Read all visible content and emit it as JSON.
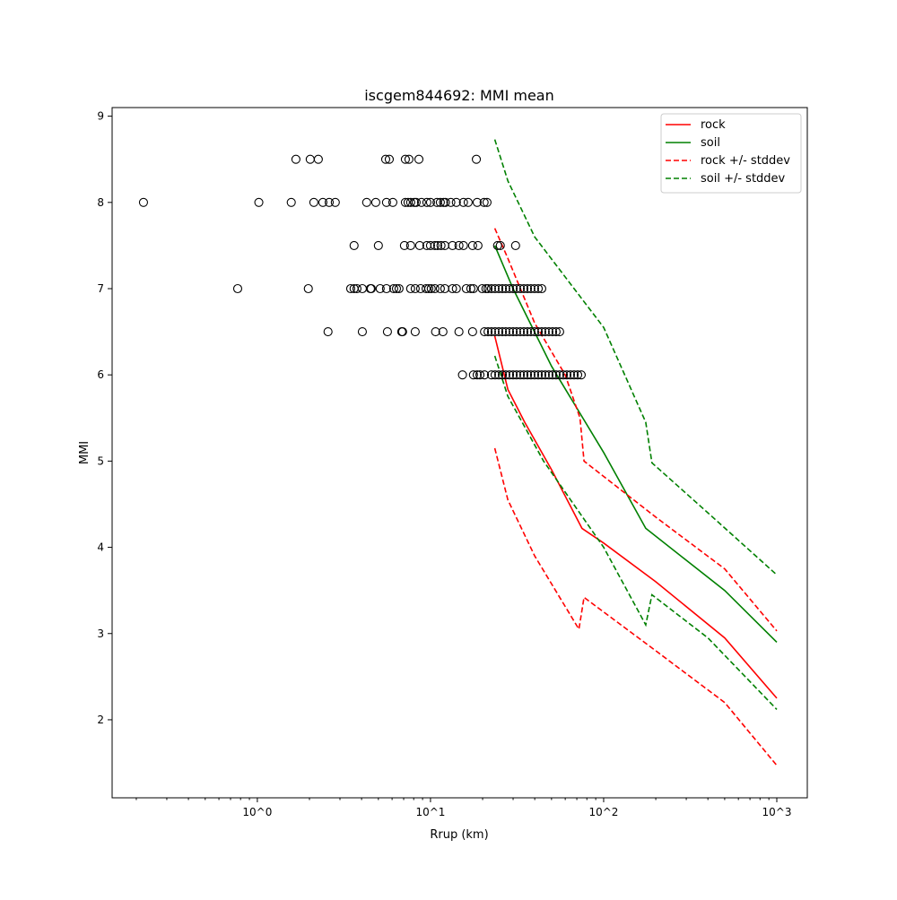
{
  "chart_data": {
    "type": "scatter",
    "title": "iscgem844692: MMI mean",
    "xlabel": "Rrup (km)",
    "ylabel": "MMI",
    "xscale": "log",
    "xlim": [
      0.145,
      1500
    ],
    "ylim": [
      1.095,
      9.1
    ],
    "x_ticks": [
      {
        "value": 1,
        "label": "10^0"
      },
      {
        "value": 10,
        "label": "10^1"
      },
      {
        "value": 100,
        "label": "10^2"
      },
      {
        "value": 1000,
        "label": "10^3"
      }
    ],
    "y_ticks": [
      2,
      3,
      4,
      5,
      6,
      7,
      8,
      9
    ],
    "grid": false,
    "legend_position": "top-right",
    "observations": {
      "name": "observed",
      "marker": "open-circle",
      "rows": [
        {
          "y": 8.5,
          "x": [
            1.67,
            2.02,
            2.25,
            5.51,
            5.78,
            7.16,
            7.51,
            8.57,
            18.4
          ]
        },
        {
          "y": 8,
          "x": [
            0.22,
            1.02,
            1.57,
            2.12,
            2.39,
            2.6,
            2.82,
            4.28,
            4.83,
            5.57,
            6.06,
            7.16,
            7.42,
            7.68,
            8.07,
            8.26,
            8.87,
            9.53,
            10,
            10.9,
            11.4,
            11.9,
            12.2,
            13.1,
            14.1,
            15.5,
            16.5,
            18.6,
            20.4,
            21.2
          ]
        },
        {
          "y": 7.5,
          "x": [
            3.62,
            5.0,
            7.07,
            7.68,
            8.66,
            9.53,
            10,
            10.6,
            11,
            11.5,
            12.1,
            13.4,
            14.6,
            15.5,
            17.5,
            18.8,
            24.4,
            25.3,
            31.0
          ]
        },
        {
          "y": 7,
          "x": [
            0.77,
            1.97,
            3.46,
            3.62,
            3.76,
            4.04,
            4.5,
            4.55,
            5.12,
            5.57,
            6.13,
            6.36,
            6.58,
            7.68,
            8.16,
            8.77,
            9.43,
            9.77,
            10.1,
            10.6,
            11.4,
            12.1,
            13.4,
            14.1,
            16.1,
            17.1,
            17.7,
            19.9,
            20.9,
            21.5,
            22.5,
            23.6,
            24.8,
            26.0,
            27.2,
            28.6,
            30.0,
            31.4,
            33.0,
            34.6,
            36.3,
            38.0,
            39.9,
            41.9,
            43.9
          ]
        },
        {
          "y": 6.5,
          "x": [
            2.56,
            4.04,
            5.64,
            6.82,
            6.9,
            8.16,
            10.7,
            11.8,
            14.6,
            17.5,
            20.5,
            21.5,
            22.5,
            23.6,
            24.8,
            26.0,
            27.2,
            28.6,
            30.0,
            31.4,
            33.0,
            34.6,
            36.3,
            38.0,
            39.9,
            41.9,
            43.9,
            46.0,
            48.3,
            50.7,
            53.1,
            55.7
          ]
        },
        {
          "y": 6,
          "x": [
            15.3,
            17.7,
            18.6,
            19.3,
            20.5,
            22.5,
            23.6,
            24.8,
            26.0,
            27.2,
            28.6,
            30.0,
            31.4,
            33.0,
            34.6,
            36.3,
            38.0,
            39.9,
            41.9,
            43.9,
            46.0,
            48.3,
            50.7,
            53.1,
            55.7,
            58.5,
            61.3,
            64.3,
            67.5,
            70.8,
            74.2
          ]
        }
      ]
    },
    "series": [
      {
        "name": "rock",
        "color": "#ff0000",
        "dash": "solid",
        "x": [
          23.5,
          28,
          35,
          50,
          75,
          100,
          200,
          500,
          1000
        ],
        "y": [
          6.45,
          5.83,
          5.45,
          4.9,
          4.22,
          4.05,
          3.6,
          2.95,
          2.25
        ]
      },
      {
        "name": "soil",
        "color": "#008000",
        "dash": "solid",
        "x": [
          23.5,
          30,
          50,
          100,
          175,
          300,
          500,
          1000
        ],
        "y": [
          7.5,
          7.0,
          6.1,
          5.1,
          4.22,
          3.85,
          3.5,
          2.9
        ]
      },
      {
        "name": "rock +/- stddev",
        "color": "#ff0000",
        "dash": "dashed",
        "x": [
          23.5,
          28,
          40,
          60,
          73,
          77,
          200,
          500,
          1000
        ],
        "y": [
          7.7,
          7.35,
          6.6,
          6.0,
          5.5,
          5.0,
          4.35,
          3.75,
          3.03
        ]
      },
      {
        "name": "rock +/- stddev (lower)",
        "color": "#ff0000",
        "dash": "dashed",
        "legend": false,
        "x": [
          23.5,
          28,
          40,
          72,
          77,
          200,
          500,
          1000
        ],
        "y": [
          5.15,
          4.55,
          3.9,
          3.05,
          3.42,
          2.8,
          2.2,
          1.47
        ]
      },
      {
        "name": "soil +/- stddev",
        "color": "#008000",
        "dash": "dashed",
        "x": [
          23.5,
          28,
          40,
          100,
          175,
          190,
          400,
          1000
        ],
        "y": [
          8.73,
          8.25,
          7.6,
          6.55,
          5.45,
          4.98,
          4.4,
          3.68
        ]
      },
      {
        "name": "soil +/- stddev (lower)",
        "color": "#008000",
        "dash": "dashed",
        "legend": false,
        "x": [
          23.5,
          28,
          45,
          100,
          175,
          190,
          400,
          1000
        ],
        "y": [
          6.22,
          5.75,
          5.0,
          4.0,
          3.1,
          3.45,
          2.95,
          2.12
        ]
      }
    ],
    "legend": [
      "rock",
      "soil",
      "rock +/- stddev",
      "soil +/- stddev"
    ]
  }
}
